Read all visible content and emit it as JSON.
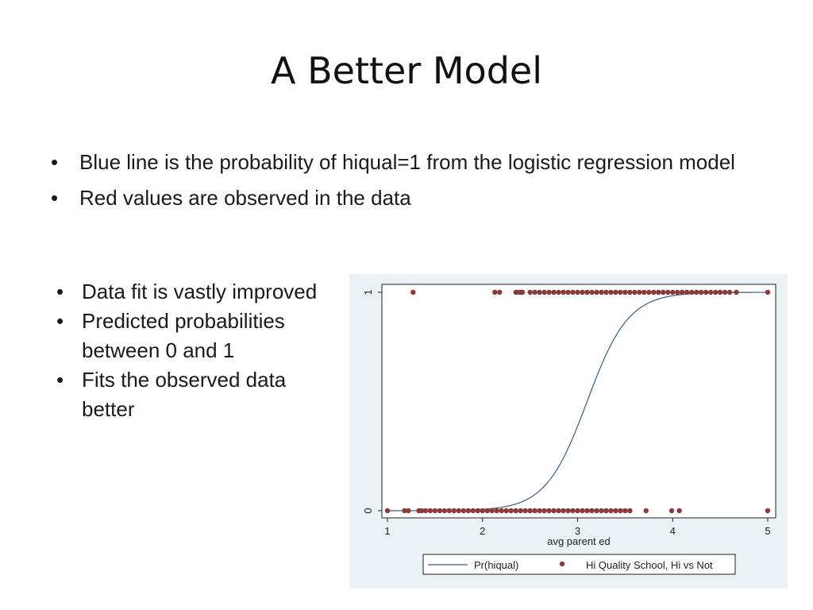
{
  "slide": {
    "title": "A Better Model",
    "bullets_top": [
      "Blue line is the probability of hiqual=1 from the logistic regression model",
      "Red values are observed in the data"
    ],
    "bullets_side": [
      "Data fit is vastly improved",
      "Predicted probabilities between 0 and 1",
      "Fits the observed data better"
    ]
  },
  "chart_data": {
    "type": "scatter",
    "xlabel": "avg parent ed",
    "ylabel": "",
    "xlim": [
      1,
      5
    ],
    "ylim": [
      0,
      1
    ],
    "x_ticks": [
      "1",
      "2",
      "3",
      "4",
      "5"
    ],
    "y_ticks": [
      "0",
      "1"
    ],
    "grid": false,
    "legend_position": "bottom",
    "colors": {
      "line": "#3b5a85",
      "points": "#8b3a3a",
      "frame": "#222222",
      "panel": "#eaf2f3",
      "plot": "#ffffff"
    },
    "series": [
      {
        "name": "Pr(hiqual)",
        "kind": "line",
        "logistic": {
          "midpoint": 3.1,
          "slope": 4.6
        },
        "x": [
          1.0,
          1.8,
          2.0,
          2.2,
          2.4,
          2.6,
          2.8,
          3.0,
          3.1,
          3.2,
          3.4,
          3.6,
          3.8,
          4.0,
          4.2,
          4.4,
          5.0
        ],
        "y": [
          0.0,
          0.003,
          0.006,
          0.016,
          0.038,
          0.09,
          0.2,
          0.39,
          0.5,
          0.61,
          0.8,
          0.91,
          0.96,
          0.985,
          0.994,
          0.998,
          1.0
        ]
      },
      {
        "name": "Hi Quality School, Hi vs Not",
        "kind": "points",
        "y1_points": [
          1.27,
          2.13,
          2.18,
          2.35,
          2.37,
          2.4,
          2.42,
          2.5,
          2.55,
          2.6,
          2.65,
          2.7,
          2.75,
          2.8,
          2.85,
          2.9,
          2.95,
          3.0,
          3.05,
          3.1,
          3.15,
          3.2,
          3.25,
          3.3,
          3.35,
          3.4,
          3.45,
          3.5,
          3.55,
          3.6,
          3.65,
          3.7,
          3.75,
          3.8,
          3.85,
          3.9,
          3.95,
          4.0,
          4.05,
          4.1,
          4.15,
          4.2,
          4.25,
          4.3,
          4.35,
          4.4,
          4.45,
          4.5,
          4.55,
          4.6,
          4.67,
          5.0
        ],
        "y0_points": [
          1.0,
          1.18,
          1.22,
          1.33,
          1.36,
          1.4,
          1.45,
          1.5,
          1.55,
          1.6,
          1.65,
          1.7,
          1.75,
          1.8,
          1.85,
          1.9,
          1.95,
          2.0,
          2.05,
          2.1,
          2.15,
          2.2,
          2.25,
          2.3,
          2.35,
          2.4,
          2.45,
          2.5,
          2.55,
          2.6,
          2.65,
          2.7,
          2.75,
          2.8,
          2.85,
          2.9,
          2.95,
          3.0,
          3.05,
          3.1,
          3.15,
          3.2,
          3.25,
          3.3,
          3.35,
          3.4,
          3.45,
          3.5,
          3.55,
          3.72,
          3.99,
          4.07,
          5.0
        ]
      }
    ]
  }
}
